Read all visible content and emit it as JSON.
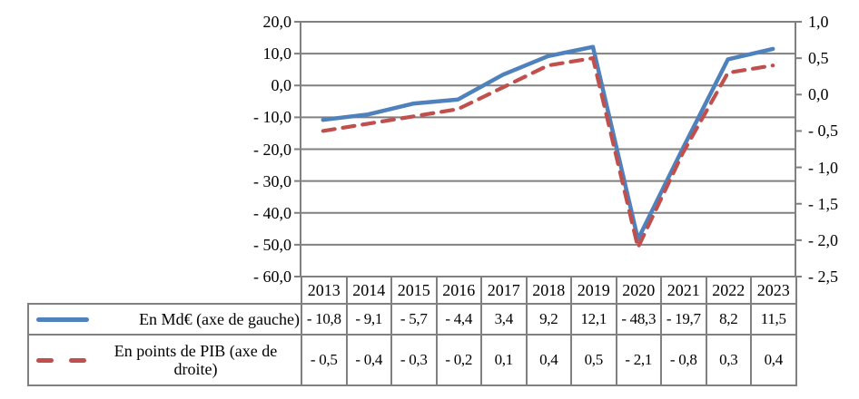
{
  "chart_data": {
    "type": "line",
    "title": "",
    "categories": [
      "2013",
      "2014",
      "2015",
      "2016",
      "2017",
      "2018",
      "2019",
      "2020",
      "2021",
      "2022",
      "2023"
    ],
    "series": [
      {
        "name": "En Md€ (axe de gauche)",
        "axis": "left",
        "line_style": "solid",
        "color": "#4F81BD",
        "values": [
          -10.8,
          -9.1,
          -5.7,
          -4.4,
          3.4,
          9.2,
          12.1,
          -48.3,
          -19.7,
          8.2,
          11.5
        ],
        "value_labels": [
          "- 10,8",
          "- 9,1",
          "- 5,7",
          "- 4,4",
          "3,4",
          "9,2",
          "12,1",
          "- 48,3",
          "- 19,7",
          "8,2",
          "11,5"
        ]
      },
      {
        "name": "En points de PIB (axe de droite)",
        "axis": "right",
        "line_style": "dashed",
        "color": "#C0504D",
        "values": [
          -0.5,
          -0.4,
          -0.3,
          -0.2,
          0.1,
          0.4,
          0.5,
          -2.1,
          -0.8,
          0.3,
          0.4
        ],
        "value_labels": [
          "- 0,5",
          "- 0,4",
          "- 0,3",
          "- 0,2",
          "0,1",
          "0,4",
          "0,5",
          "- 2,1",
          "- 0,8",
          "0,3",
          "0,4"
        ]
      }
    ],
    "left_axis": {
      "max": 20,
      "min": -60,
      "step": 10,
      "tick_labels": [
        "20,0",
        "10,0",
        "0,0",
        "- 10,0",
        "- 20,0",
        "- 30,0",
        "- 40,0",
        "- 50,0",
        "- 60,0"
      ]
    },
    "right_axis": {
      "max": 1.0,
      "min": -2.5,
      "step": 0.5,
      "tick_labels": [
        "1,0",
        "0,5",
        "0,0",
        "- 0,5",
        "- 1,0",
        "- 1,5",
        "- 2,0",
        "- 2,5"
      ]
    },
    "grid": true,
    "legend_position": "data-table-left",
    "colors": {
      "grid": "#808080",
      "axis": "#808080",
      "table_border": "#808080",
      "text": "#000000",
      "background": "#ffffff"
    }
  }
}
